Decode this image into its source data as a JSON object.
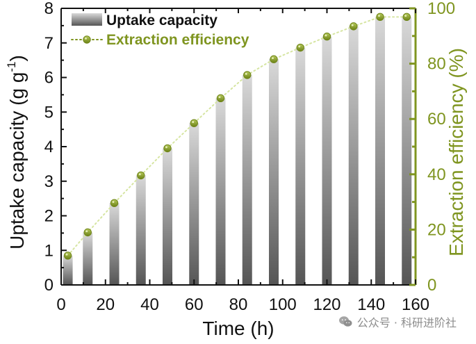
{
  "chart_data": {
    "type": "bar+line",
    "title": "",
    "x": [
      3,
      12,
      24,
      36,
      48,
      60,
      72,
      84,
      96,
      108,
      120,
      132,
      144,
      156
    ],
    "xlabel": "Time (h)",
    "xlim": [
      0,
      160
    ],
    "xticks": [
      "0",
      "20",
      "40",
      "60",
      "80",
      "100",
      "120",
      "140",
      "160"
    ],
    "ylabel_left": "Uptake capacity (g g",
    "ylabel_left_superscript": "-1",
    "ylabel_left_suffix": ")",
    "ylim_left": [
      0,
      8
    ],
    "yticks_left": [
      "0",
      "1",
      "2",
      "3",
      "4",
      "5",
      "6",
      "7",
      "8"
    ],
    "ylabel_right": "Extraction efficiency (%)",
    "ylim_right": [
      0,
      100
    ],
    "yticks_right": [
      "0",
      "20",
      "40",
      "60",
      "80",
      "100"
    ],
    "legend_position": "top-left",
    "series": [
      {
        "name": "Uptake capacity",
        "kind": "bar",
        "axis": "left",
        "values": [
          0.85,
          1.52,
          2.37,
          3.17,
          3.95,
          4.68,
          5.4,
          6.07,
          6.53,
          6.86,
          7.18,
          7.48,
          7.75,
          7.75
        ],
        "color_top": "#d9d9d9",
        "color_bottom": "#555555"
      },
      {
        "name": "Extraction efficiency",
        "kind": "line",
        "axis": "right",
        "values": [
          10.6,
          19.0,
          29.6,
          39.6,
          49.4,
          58.5,
          67.5,
          75.9,
          81.6,
          85.8,
          89.8,
          93.5,
          96.9,
          96.9
        ],
        "color": "#7f9520",
        "line_color": "#d6e5a2"
      }
    ]
  },
  "watermark": {
    "text": "公众号 · 科研进阶社",
    "icon": "wechat-icon"
  }
}
